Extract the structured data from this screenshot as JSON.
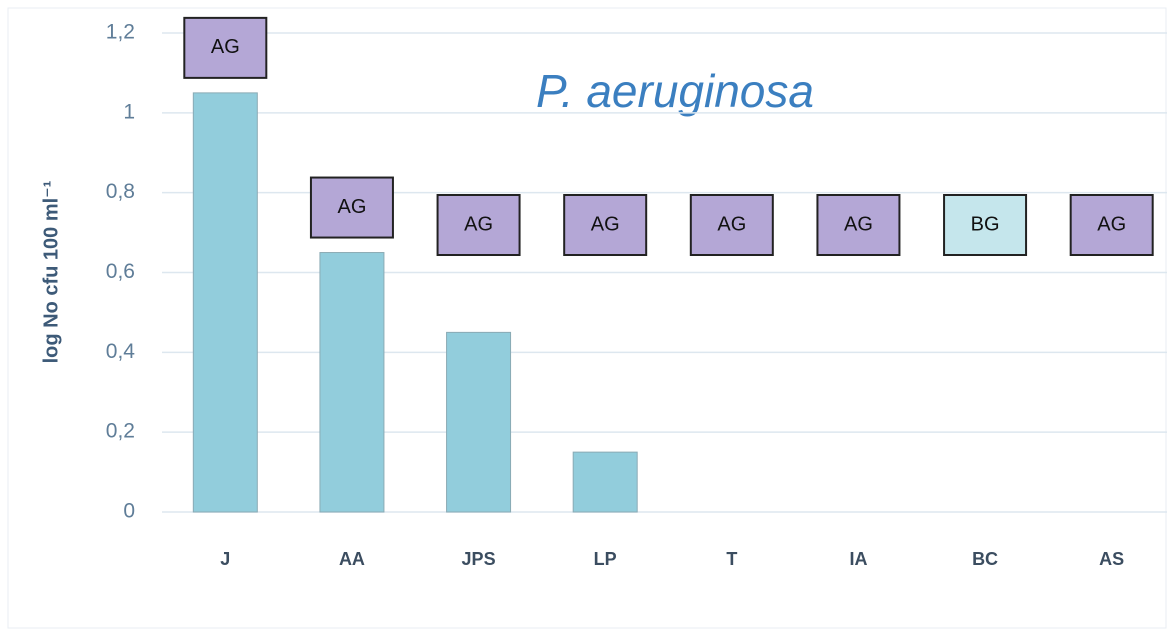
{
  "chart_data": {
    "type": "bar",
    "title": "P. aeruginosa",
    "y_label": "log No cfu 100 ml⁻¹",
    "categories": [
      "J",
      "AA",
      "JPS",
      "LP",
      "T",
      "IA",
      "BC",
      "AS"
    ],
    "values": [
      1.05,
      0.65,
      0.45,
      0.15,
      0,
      0,
      0,
      0
    ],
    "color": "#92cddc",
    "annotations": [
      "AG",
      "AG",
      "AG",
      "AG",
      "AG",
      "AG",
      "BG",
      "AG"
    ],
    "annotation_colors": [
      "#b4a7d6",
      "#b4a7d6",
      "#b4a7d6",
      "#b4a7d6",
      "#b4a7d6",
      "#b4a7d6",
      "#c5e6ec",
      "#b4a7d6"
    ],
    "ylim": [
      0,
      1.2
    ],
    "yticks": [
      0,
      {
        "value": 0.2,
        "label": "0,2"
      },
      {
        "value": 0.4,
        "label": "0,4"
      },
      {
        "value": 0.6,
        "label": "0,6"
      },
      {
        "value": 0.8,
        "label": "0,8"
      },
      1,
      {
        "value": 1.2,
        "label": "1,2"
      }
    ],
    "grid": true
  }
}
